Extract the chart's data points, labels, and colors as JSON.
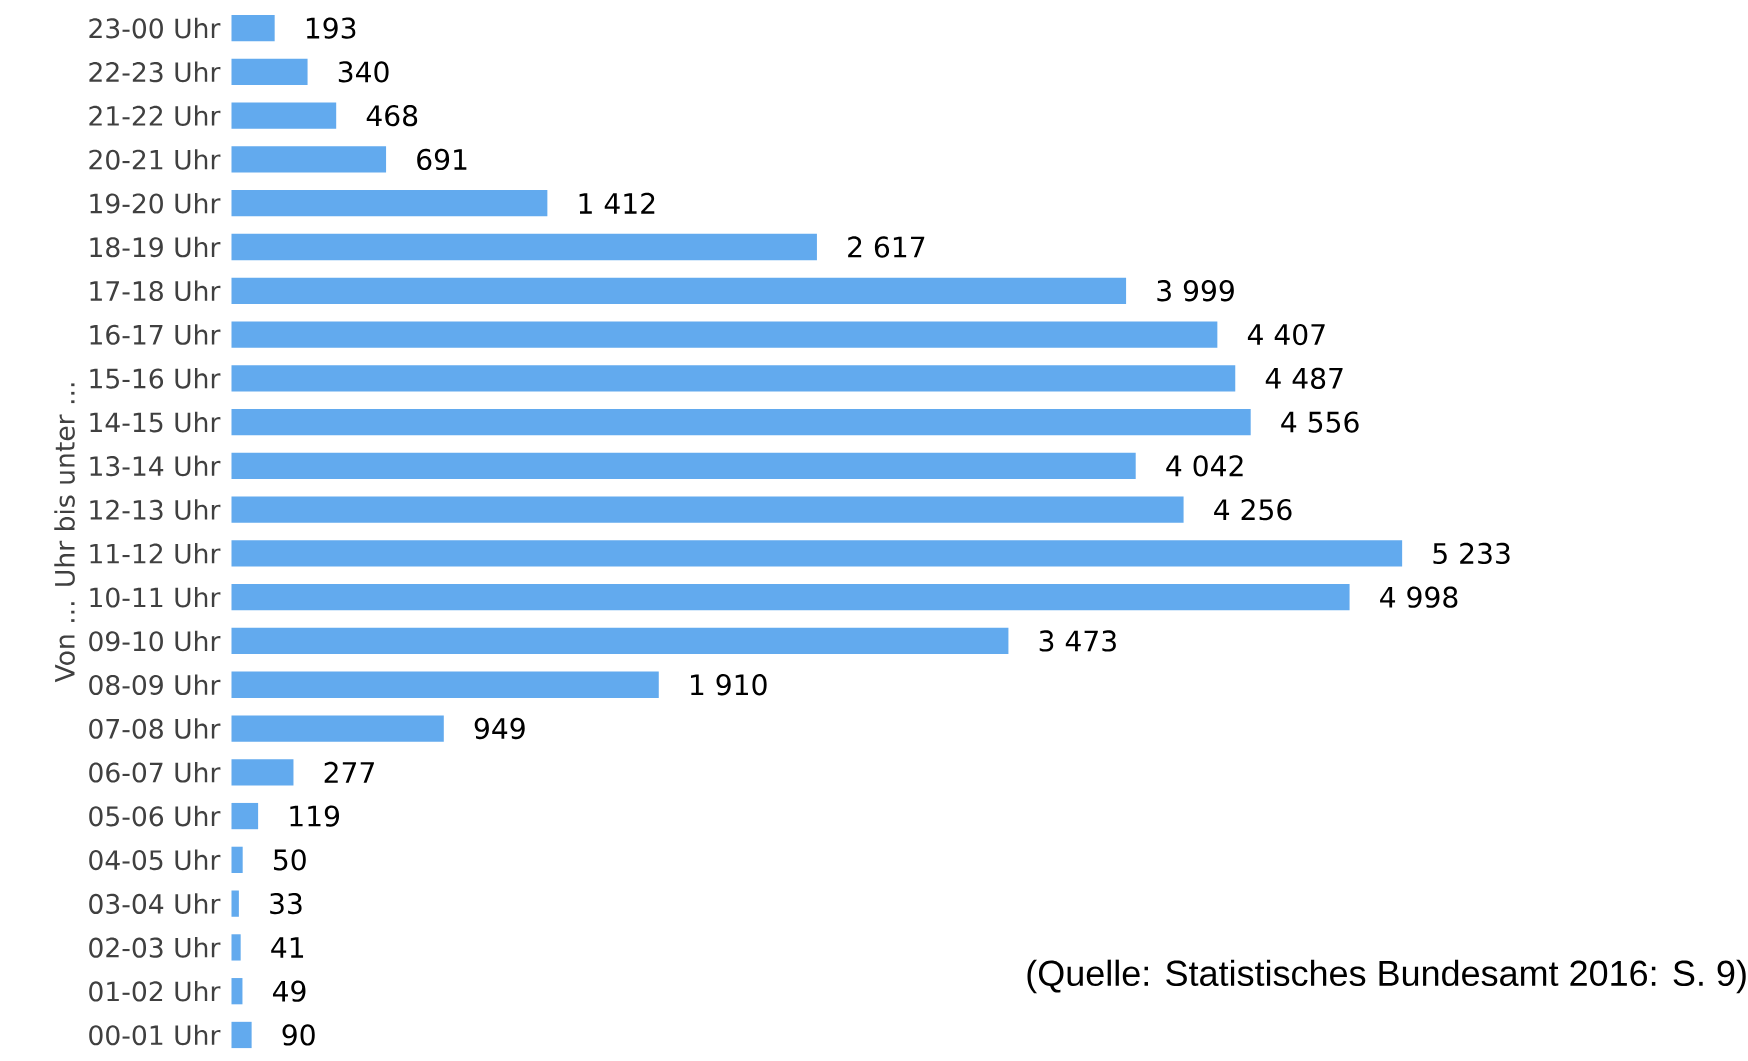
{
  "chart_data": {
    "type": "bar",
    "orientation": "horizontal",
    "ylabel": "Von ... Uhr bis unter ...",
    "categories": [
      "23-00 Uhr",
      "22-23 Uhr",
      "21-22 Uhr",
      "20-21 Uhr",
      "19-20 Uhr",
      "18-19 Uhr",
      "17-18 Uhr",
      "16-17 Uhr",
      "15-16 Uhr",
      "14-15 Uhr",
      "13-14 Uhr",
      "12-13 Uhr",
      "11-12 Uhr",
      "10-11 Uhr",
      "09-10 Uhr",
      "08-09 Uhr",
      "07-08 Uhr",
      "06-07 Uhr",
      "05-06 Uhr",
      "04-05 Uhr",
      "03-04 Uhr",
      "02-03 Uhr",
      "01-02 Uhr",
      "00-01 Uhr"
    ],
    "values": [
      193,
      340,
      468,
      691,
      1412,
      2617,
      3999,
      4407,
      4487,
      4556,
      4042,
      4256,
      5233,
      4998,
      3473,
      1910,
      949,
      277,
      119,
      50,
      33,
      41,
      49,
      90
    ],
    "value_labels": [
      "193",
      "340",
      "468",
      "691",
      "1 412",
      "2 617",
      "3 999",
      "4 407",
      "4 487",
      "4 556",
      "4 042",
      "4 256",
      "5 233",
      "4 998",
      "3 473",
      "1 910",
      "949",
      "277",
      "119",
      "50",
      "33",
      "41",
      "49",
      "90"
    ],
    "color": "#62aaee",
    "annotations": [
      "(Quelle: Statistisches Bundesamt 2016: S. 9)"
    ]
  }
}
